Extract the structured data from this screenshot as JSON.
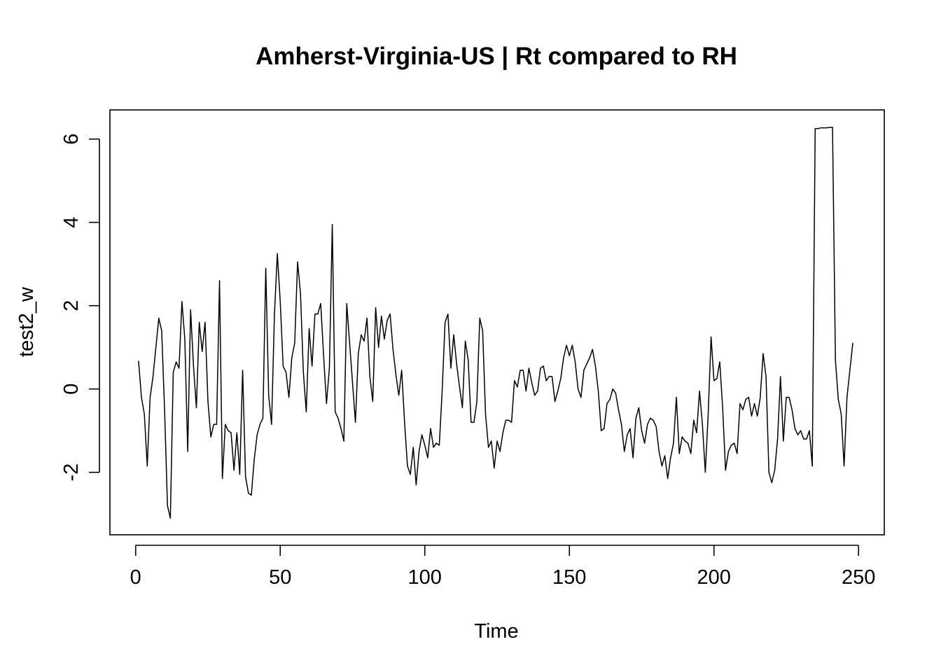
{
  "chart_data": {
    "type": "line",
    "title": "Amherst-Virginia-US | Rt compared to RH",
    "xlabel": "Time",
    "ylabel": "test2_w",
    "xlim": [
      -8.9,
      258.9
    ],
    "ylim": [
      -3.5,
      6.7
    ],
    "x_ticks": [
      0,
      50,
      100,
      150,
      200,
      250
    ],
    "y_ticks": [
      -2,
      0,
      2,
      4,
      6
    ],
    "x_tick_labels": [
      "0",
      "50",
      "100",
      "150",
      "200",
      "250"
    ],
    "y_tick_labels": [
      "-2",
      "0",
      "2",
      "4",
      "6"
    ],
    "grid": false,
    "legend": "none",
    "line_color": "#000000",
    "series": [
      {
        "x_start": 1,
        "values": [
          0.67,
          -0.2,
          -0.6,
          -1.85,
          -0.2,
          0.3,
          1.0,
          1.7,
          1.4,
          -0.5,
          -2.8,
          -3.1,
          0.4,
          0.65,
          0.5,
          2.1,
          1.2,
          -1.5,
          1.9,
          0.55,
          -0.45,
          1.6,
          0.9,
          1.6,
          -0.3,
          -1.15,
          -0.85,
          -0.85,
          2.6,
          -2.15,
          -0.85,
          -1.0,
          -1.05,
          -1.95,
          -1.05,
          -2.05,
          0.45,
          -2.1,
          -2.5,
          -2.55,
          -1.7,
          -1.1,
          -0.85,
          -0.7,
          2.9,
          -0.15,
          -0.85,
          1.8,
          3.25,
          2.1,
          0.55,
          0.4,
          -0.2,
          0.75,
          1.1,
          3.05,
          2.3,
          0.4,
          -0.55,
          1.45,
          0.55,
          1.8,
          1.8,
          2.05,
          0.8,
          -0.35,
          0.5,
          3.95,
          -0.55,
          -0.7,
          -0.95,
          -1.25,
          2.05,
          1.1,
          0.15,
          -0.8,
          0.85,
          1.3,
          1.15,
          1.7,
          0.3,
          -0.3,
          1.95,
          1.0,
          1.75,
          1.2,
          1.65,
          1.8,
          0.95,
          0.35,
          -0.15,
          0.45,
          -0.8,
          -1.85,
          -2.05,
          -1.4,
          -2.3,
          -1.5,
          -1.1,
          -1.35,
          -1.65,
          -0.95,
          -1.4,
          -1.3,
          -1.35,
          -0.05,
          1.6,
          1.8,
          0.5,
          1.3,
          0.6,
          0.05,
          -0.45,
          1.15,
          0.7,
          -0.8,
          -0.8,
          -0.3,
          1.7,
          1.4,
          -0.6,
          -1.4,
          -1.25,
          -1.9,
          -1.25,
          -1.5,
          -1.05,
          -0.75,
          -0.75,
          -0.8,
          0.2,
          0.05,
          0.45,
          0.45,
          -0.05,
          0.5,
          0.15,
          -0.15,
          -0.05,
          0.5,
          0.55,
          0.2,
          0.3,
          0.3,
          -0.3,
          -0.05,
          0.25,
          0.75,
          1.05,
          0.8,
          1.05,
          0.65,
          0.0,
          -0.2,
          0.45,
          0.6,
          0.75,
          0.95,
          0.55,
          -0.05,
          -1.0,
          -0.95,
          -0.35,
          -0.25,
          0.0,
          -0.1,
          -0.5,
          -0.85,
          -1.5,
          -1.1,
          -0.95,
          -1.65,
          -0.7,
          -0.45,
          -1.0,
          -1.3,
          -0.85,
          -0.7,
          -0.75,
          -0.9,
          -1.5,
          -1.85,
          -1.6,
          -2.15,
          -1.65,
          -1.3,
          -0.2,
          -1.55,
          -1.15,
          -1.25,
          -1.3,
          -1.55,
          -0.75,
          -1.05,
          -0.05,
          -0.85,
          -2.0,
          -0.6,
          1.25,
          0.2,
          0.25,
          0.65,
          -0.45,
          -1.95,
          -1.5,
          -1.35,
          -1.3,
          -1.55,
          -0.35,
          -0.5,
          -0.25,
          -0.2,
          -0.65,
          -0.35,
          -0.65,
          -0.2,
          0.85,
          0.3,
          -2.0,
          -2.25,
          -1.95,
          -1.2,
          0.3,
          -1.25,
          -0.2,
          -0.2,
          -0.5,
          -0.95,
          -1.1,
          -1.0,
          -1.2,
          -1.2,
          -1.0,
          -1.85,
          6.25,
          6.25,
          6.27,
          6.27,
          6.27,
          6.28,
          6.28,
          0.7,
          -0.25,
          -0.6,
          -1.85,
          -0.2,
          0.45,
          1.1
        ]
      }
    ]
  }
}
